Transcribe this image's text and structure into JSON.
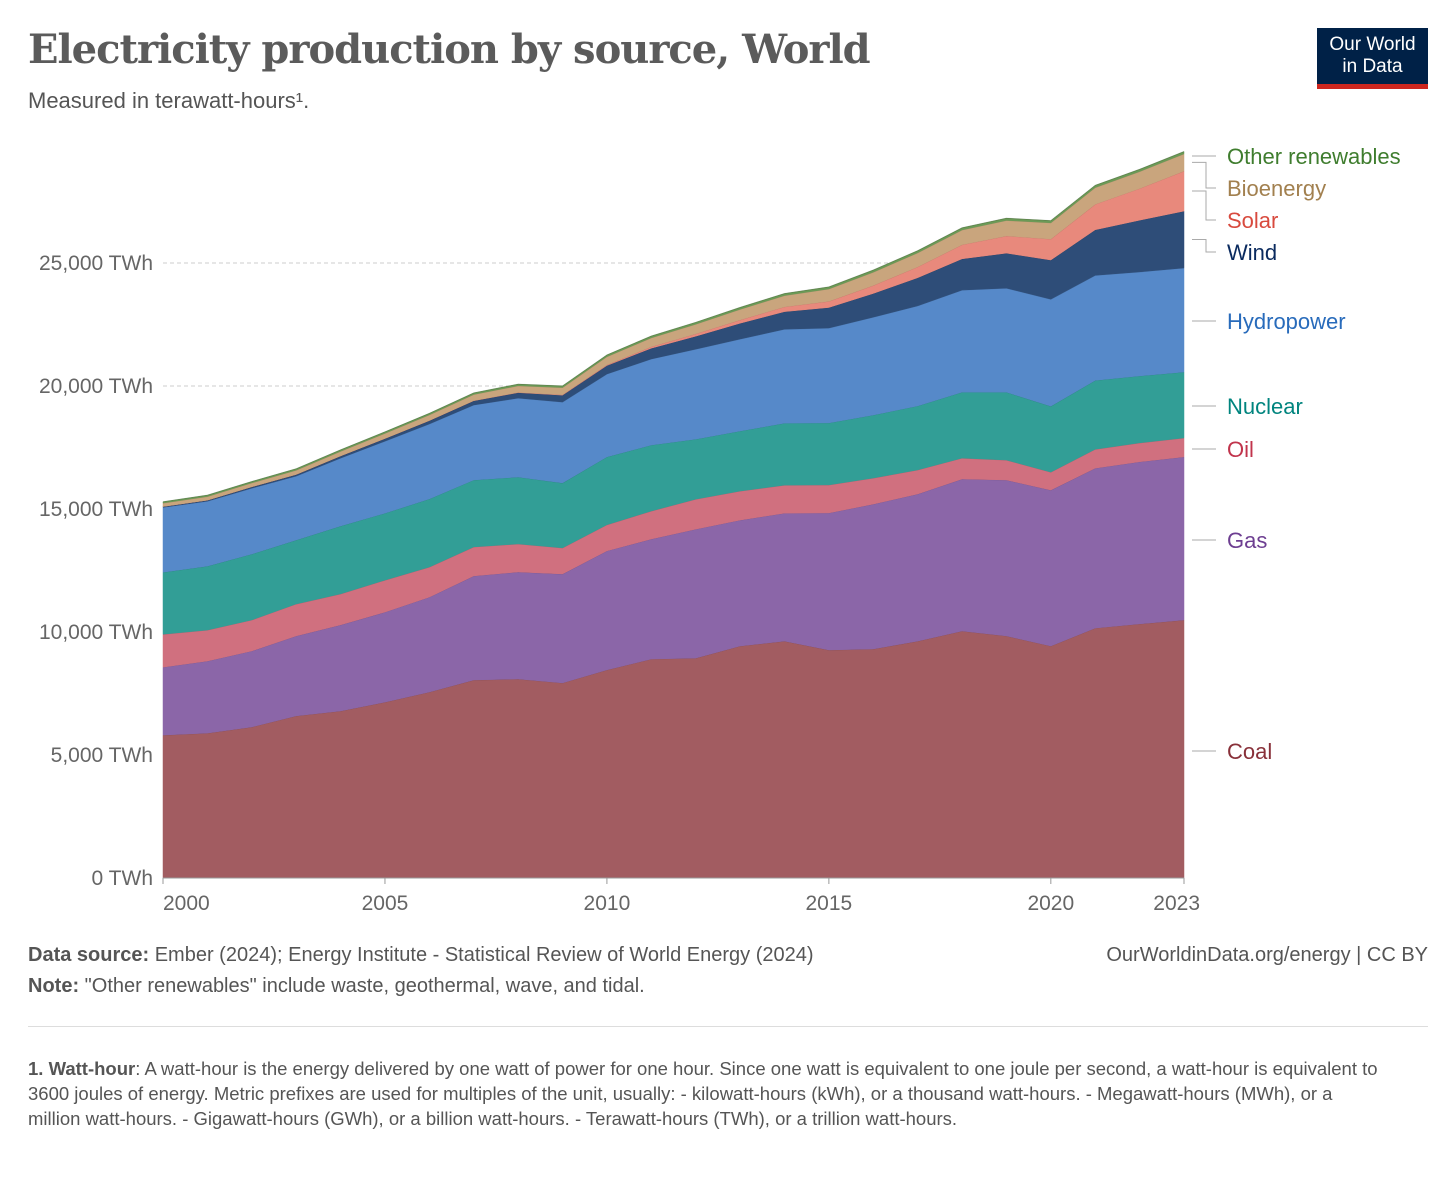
{
  "title": "Electricity production by source, World",
  "subtitle": "Measured in terawatt-hours¹.",
  "logo": {
    "line1": "Our World",
    "line2": "in Data"
  },
  "source_label": "Data source:",
  "source_text": " Ember (2024); Energy Institute - Statistical Review of World Energy (2024)",
  "note_label": "Note:",
  "note_text": " \"Other renewables\" include waste, geothermal, wave, and tidal.",
  "credit": "OurWorldinData.org/energy | CC BY",
  "footnote_label": "1. Watt-hour",
  "footnote_text": ": A watt-hour is the energy delivered by one watt of power for one hour. Since one watt is equivalent to one joule per second, a watt-hour is equivalent to 3600 joules of energy. Metric prefixes are used for multiples of the unit, usually: - kilowatt-hours (kWh), or a thousand watt-hours. - Megawatt-hours (MWh), or a million watt-hours. - Gigawatt-hours (GWh), or a billion watt-hours. - Terawatt-hours (TWh), or a trillion watt-hours.",
  "chart_data": {
    "type": "area",
    "stacked": true,
    "title": "Electricity production by source, World",
    "ylabel": "TWh",
    "ylim": [
      0,
      30000
    ],
    "yticks": [
      0,
      5000,
      10000,
      15000,
      20000,
      25000
    ],
    "ytick_labels": [
      "0 TWh",
      "5,000 TWh",
      "10,000 TWh",
      "15,000 TWh",
      "20,000 TWh",
      "25,000 TWh"
    ],
    "xticks": [
      2000,
      2005,
      2010,
      2015,
      2020,
      2023
    ],
    "xtick_labels": [
      "2000",
      "2005",
      "2010",
      "2015",
      "2020",
      "2023"
    ],
    "legend_placement": "right",
    "x": [
      2000,
      2001,
      2002,
      2003,
      2004,
      2005,
      2006,
      2007,
      2008,
      2009,
      2010,
      2011,
      2012,
      2013,
      2014,
      2015,
      2016,
      2017,
      2018,
      2019,
      2020,
      2021,
      2022,
      2023
    ],
    "series": [
      {
        "name": "Coal",
        "fill": "#a25c61",
        "label_color": "#883039",
        "values": [
          5810,
          5890,
          6140,
          6590,
          6790,
          7150,
          7560,
          8050,
          8090,
          7930,
          8460,
          8900,
          8940,
          9430,
          9630,
          9270,
          9310,
          9630,
          10040,
          9840,
          9430,
          10160,
          10330,
          10490
        ]
      },
      {
        "name": "Gas",
        "fill": "#8b66a8",
        "label_color": "#6d3e91",
        "values": [
          2760,
          2930,
          3090,
          3250,
          3500,
          3660,
          3860,
          4230,
          4350,
          4430,
          4840,
          4880,
          5240,
          5120,
          5200,
          5570,
          5890,
          5980,
          6180,
          6340,
          6340,
          6500,
          6590,
          6630
        ]
      },
      {
        "name": "Oil",
        "fill": "#d0707f",
        "label_color": "#c1344c",
        "values": [
          1340,
          1260,
          1260,
          1300,
          1260,
          1300,
          1220,
          1180,
          1140,
          1060,
          1060,
          1140,
          1220,
          1180,
          1140,
          1140,
          1060,
          980,
          850,
          810,
          730,
          770,
          770,
          770
        ]
      },
      {
        "name": "Nuclear",
        "fill": "#329e96",
        "label_color": "#00847e",
        "values": [
          2520,
          2600,
          2680,
          2600,
          2760,
          2720,
          2770,
          2720,
          2720,
          2640,
          2760,
          2680,
          2440,
          2440,
          2520,
          2520,
          2560,
          2600,
          2680,
          2760,
          2680,
          2800,
          2720,
          2680
        ]
      },
      {
        "name": "Hydropower",
        "fill": "#5689c9",
        "label_color": "#286bbb",
        "values": [
          2640,
          2640,
          2680,
          2600,
          2760,
          2930,
          3050,
          3050,
          3210,
          3290,
          3370,
          3500,
          3660,
          3740,
          3820,
          3860,
          3980,
          4070,
          4150,
          4230,
          4350,
          4270,
          4230,
          4230
        ]
      },
      {
        "name": "Wind",
        "fill": "#2e4d78",
        "label_color": "#0a2a5e",
        "values": [
          31,
          38,
          52,
          63,
          85,
          104,
          133,
          170,
          220,
          277,
          342,
          437,
          523,
          640,
          712,
          831,
          962,
          1140,
          1270,
          1420,
          1590,
          1850,
          2100,
          2310
        ]
      },
      {
        "name": "Solar",
        "fill": "#e8897c",
        "label_color": "#d84a3e",
        "values": [
          1,
          2,
          2,
          3,
          3,
          4,
          6,
          8,
          12,
          21,
          32,
          64,
          100,
          139,
          198,
          256,
          328,
          445,
          575,
          703,
          855,
          1040,
          1290,
          1630
        ]
      },
      {
        "name": "Bioenergy",
        "fill": "#c9a57d",
        "label_color": "#a2804f",
        "values": [
          140,
          150,
          160,
          175,
          190,
          210,
          230,
          250,
          270,
          290,
          330,
          360,
          390,
          430,
          460,
          500,
          540,
          570,
          600,
          630,
          660,
          680,
          690,
          700
        ]
      },
      {
        "name": "Other renewables",
        "fill": "#6b9a56",
        "label_color": "#3f7d2e",
        "values": [
          55,
          55,
          55,
          57,
          58,
          60,
          62,
          63,
          65,
          67,
          70,
          72,
          75,
          78,
          80,
          82,
          85,
          87,
          88,
          89,
          90,
          90,
          90,
          92
        ]
      }
    ]
  }
}
